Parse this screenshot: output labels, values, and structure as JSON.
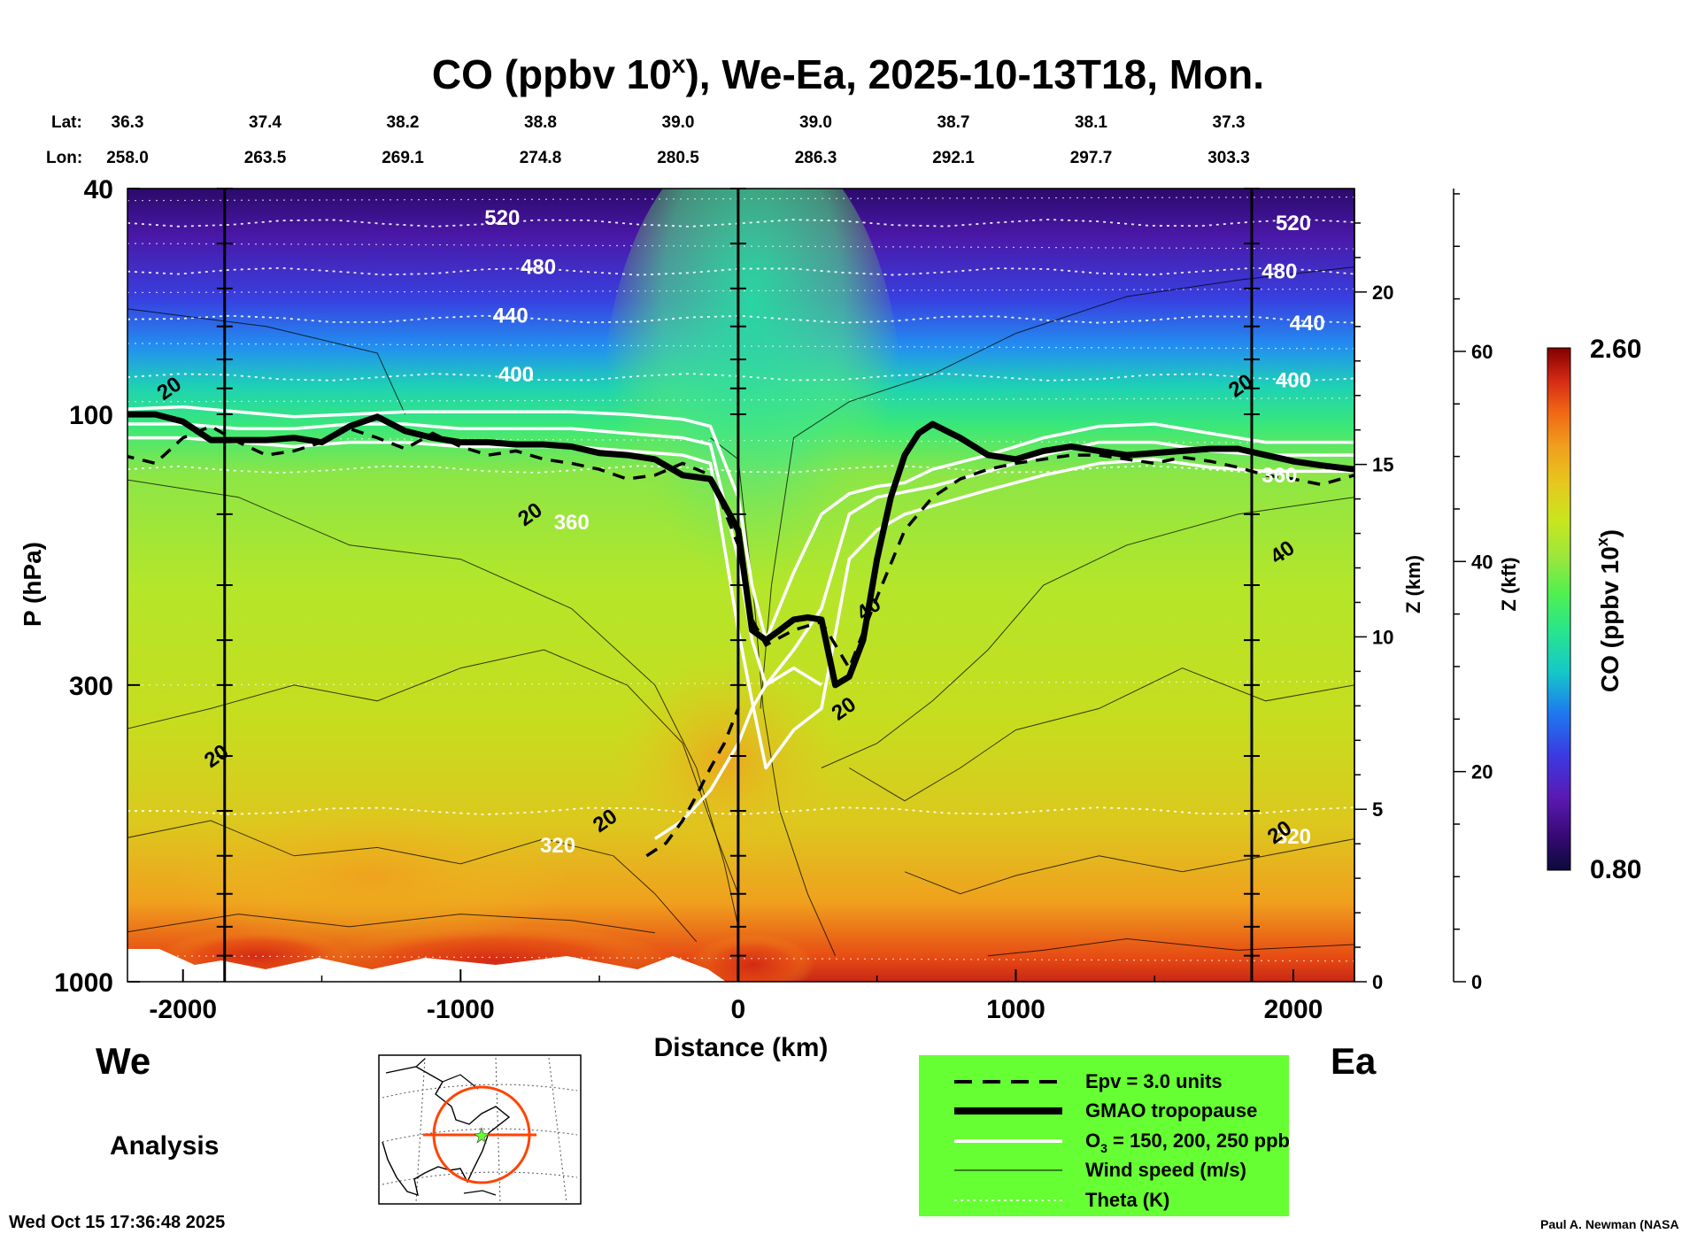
{
  "chart_data": {
    "type": "heatmap",
    "title": "CO (ppbv 10",
    "title_superscript": "x",
    "title_rest": "), We-Ea, 2025-10-13T18, Mon.",
    "lat_label": "Lat:",
    "lon_label": "Lon:",
    "lat_values": [
      "36.3",
      "37.4",
      "38.2",
      "38.8",
      "39.0",
      "39.0",
      "38.7",
      "38.1",
      "37.3"
    ],
    "lon_values": [
      "258.0",
      "263.5",
      "269.1",
      "274.8",
      "280.5",
      "286.3",
      "292.1",
      "297.7",
      "303.3"
    ],
    "xlabel": "Distance (km)",
    "ylabel": "P (hPa)",
    "xlim": [
      -2200,
      2220
    ],
    "ylim": [
      1000,
      40
    ],
    "y_scale": "log",
    "x_ticks": [
      -2000,
      -1000,
      0,
      1000,
      2000
    ],
    "x_tick_labels": [
      "-2000",
      "-1000",
      "0",
      "1000",
      "2000"
    ],
    "y_ticks": [
      1000,
      300,
      100,
      40
    ],
    "y_tick_labels": [
      "1000",
      "300",
      "100",
      "40"
    ],
    "z_km_label": "Z (km)",
    "z_km_ticks": [
      0,
      5,
      10,
      15,
      20
    ],
    "z_km_tick_labels": [
      "0",
      "5",
      "10",
      "15",
      "20"
    ],
    "z_kft_label": "Z (kft)",
    "z_kft_ticks": [
      0,
      20,
      40,
      60
    ],
    "z_kft_tick_labels": [
      "0",
      "20",
      "40",
      "60"
    ],
    "vertical_lines_km": [
      -1850,
      0,
      1850
    ],
    "direction_left": "We",
    "direction_right": "Ea",
    "analysis_label": "Analysis",
    "colorbar": {
      "label": "CO (ppbv 10",
      "label_superscript": "x",
      "label_close": ")",
      "min": 0.8,
      "max": 2.6,
      "min_label": "0.80",
      "max_label": "2.60",
      "colors": [
        "#0a0a3c",
        "#3a0a78",
        "#5a1ab4",
        "#3a3ae0",
        "#1e78f0",
        "#14c8c8",
        "#28e68c",
        "#50f050",
        "#9ce63c",
        "#c8e61e",
        "#e6c81e",
        "#f0a01e",
        "#f06414",
        "#d22814",
        "#820000"
      ]
    },
    "theta_contours": [
      {
        "label": "520",
        "p": 46
      },
      {
        "label": "480",
        "p": 56
      },
      {
        "label": "440",
        "p": 68
      },
      {
        "label": "400",
        "p": 86
      },
      {
        "label": "360",
        "p": 125
      },
      {
        "label": "320",
        "p": 500
      }
    ],
    "theta_label_positions": [
      {
        "label": "520",
        "x": -850,
        "p": 45
      },
      {
        "label": "520",
        "x": 2000,
        "p": 46
      },
      {
        "label": "480",
        "x": -720,
        "p": 55
      },
      {
        "label": "480",
        "x": 1950,
        "p": 56
      },
      {
        "label": "440",
        "x": -820,
        "p": 67
      },
      {
        "label": "440",
        "x": 2050,
        "p": 69
      },
      {
        "label": "400",
        "x": -800,
        "p": 85
      },
      {
        "label": "400",
        "x": 2000,
        "p": 87
      },
      {
        "label": "360",
        "x": -600,
        "p": 155
      },
      {
        "label": "360",
        "x": 1950,
        "p": 128
      },
      {
        "label": "320",
        "x": -650,
        "p": 575
      },
      {
        "label": "320",
        "x": 2000,
        "p": 555
      }
    ],
    "wind_labels": [
      {
        "label": "20",
        "x": -2050,
        "p": 90
      },
      {
        "label": "20",
        "x": -750,
        "p": 150
      },
      {
        "label": "20",
        "x": -1880,
        "p": 400
      },
      {
        "label": "20",
        "x": -480,
        "p": 520
      },
      {
        "label": "40",
        "x": 470,
        "p": 220
      },
      {
        "label": "20",
        "x": 380,
        "p": 330
      },
      {
        "label": "20",
        "x": 1810,
        "p": 89
      },
      {
        "label": "40",
        "x": 1960,
        "p": 175
      },
      {
        "label": "20",
        "x": 1950,
        "p": 545
      }
    ],
    "tropopause": {
      "x": [
        -2220,
        -2100,
        -2000,
        -1900,
        -1800,
        -1700,
        -1600,
        -1500,
        -1400,
        -1300,
        -1200,
        -1100,
        -1000,
        -900,
        -800,
        -700,
        -600,
        -500,
        -400,
        -300,
        -200,
        -100,
        0,
        50,
        100,
        150,
        200,
        250,
        300,
        350,
        400,
        450,
        500,
        550,
        600,
        650,
        700,
        800,
        900,
        1000,
        1100,
        1200,
        1300,
        1400,
        1500,
        1600,
        1700,
        1800,
        1900,
        2000,
        2100,
        2220
      ],
      "p": [
        100,
        100,
        103,
        111,
        111,
        111,
        110,
        112,
        105,
        101,
        107,
        110,
        112,
        112,
        113,
        113,
        114,
        117,
        118,
        120,
        128,
        130,
        160,
        240,
        250,
        240,
        230,
        228,
        230,
        300,
        290,
        250,
        180,
        140,
        118,
        108,
        104,
        110,
        118,
        120,
        116,
        114,
        116,
        118,
        117,
        116,
        115,
        115,
        118,
        121,
        123,
        125
      ]
    },
    "o3_150": {
      "x": [
        -2220,
        -2000,
        -1800,
        -1600,
        -1400,
        -1200,
        -1000,
        -800,
        -600,
        -400,
        -200,
        -100,
        0,
        50,
        100,
        200,
        300,
        400,
        500,
        600,
        700,
        900,
        1100,
        1300,
        1500,
        1700,
        1900,
        2220
      ],
      "p": [
        98,
        97,
        99,
        101,
        100,
        99,
        99,
        99,
        99,
        100,
        102,
        105,
        140,
        200,
        250,
        190,
        150,
        138,
        134,
        132,
        125,
        118,
        110,
        105,
        104,
        108,
        112,
        112
      ]
    },
    "o3_200": {
      "x": [
        -2220,
        -2000,
        -1800,
        -1600,
        -1400,
        -1200,
        -1000,
        -800,
        -600,
        -400,
        -200,
        -100,
        0,
        50,
        100,
        200,
        300,
        400,
        500,
        600,
        700,
        900,
        1100,
        1300,
        1500,
        1700,
        1900,
        2220
      ],
      "p": [
        104,
        104,
        106,
        106,
        104,
        104,
        106,
        106,
        106,
        108,
        110,
        113,
        180,
        250,
        300,
        260,
        220,
        150,
        140,
        137,
        134,
        126,
        118,
        112,
        112,
        116,
        118,
        118
      ]
    },
    "o3_250": {
      "x": [
        -2220,
        -2000,
        -1800,
        -1600,
        -1400,
        -1200,
        -1000,
        -800,
        -600,
        -400,
        -200,
        -100,
        0,
        50,
        100,
        200,
        300,
        400,
        500,
        600,
        700,
        900,
        1100,
        1300,
        1500,
        1700,
        1900,
        2220
      ],
      "p": [
        110,
        110,
        112,
        114,
        112,
        112,
        114,
        114,
        114,
        116,
        118,
        122,
        240,
        320,
        420,
        360,
        330,
        180,
        160,
        150,
        145,
        136,
        128,
        122,
        120,
        124,
        126,
        126
      ]
    },
    "o3_tail": {
      "x": [
        -300,
        -200,
        -100,
        0,
        50,
        100,
        200,
        300
      ],
      "p": [
        560,
        520,
        460,
        380,
        330,
        300,
        280,
        300
      ]
    },
    "epv_3": {
      "x": [
        -2220,
        -2100,
        -2000,
        -1900,
        -1800,
        -1700,
        -1600,
        -1500,
        -1400,
        -1300,
        -1200,
        -1100,
        -1000,
        -900,
        -800,
        -700,
        -600,
        -500,
        -400,
        -300,
        -200,
        -100,
        0,
        50,
        100,
        200,
        300,
        400,
        500,
        600,
        700,
        800,
        900,
        1000,
        1100,
        1200,
        1300,
        1400,
        1500,
        1600,
        1700,
        1800,
        1900,
        2000,
        2100,
        2220
      ],
      "p": [
        118,
        122,
        110,
        105,
        112,
        118,
        116,
        112,
        106,
        110,
        115,
        108,
        114,
        118,
        116,
        120,
        122,
        125,
        130,
        128,
        122,
        128,
        170,
        230,
        255,
        240,
        232,
        280,
        210,
        160,
        140,
        130,
        125,
        122,
        120,
        118,
        118,
        120,
        122,
        119,
        121,
        124,
        128,
        130,
        133,
        128
      ]
    },
    "epv_low": {
      "x": [
        -330,
        -260,
        -200,
        -150,
        -100,
        -50,
        0
      ],
      "p": [
        600,
        570,
        520,
        470,
        420,
        380,
        330
      ]
    },
    "legend": {
      "epv": "Epv = 3.0 units",
      "tropopause": "GMAO tropopause",
      "o3_prefix": "O",
      "o3_sub": "3",
      "o3_rest": " = 150, 200, 250 ppb",
      "wind": "Wind speed (m/s)",
      "theta": "Theta (K)",
      "background_color": "#66ff33"
    },
    "timestamp": "Wed Oct 15 17:36:48 2025",
    "credit": "Paul A. Newman (NASA",
    "map_inset": {
      "line_color": "#ff4400"
    }
  }
}
